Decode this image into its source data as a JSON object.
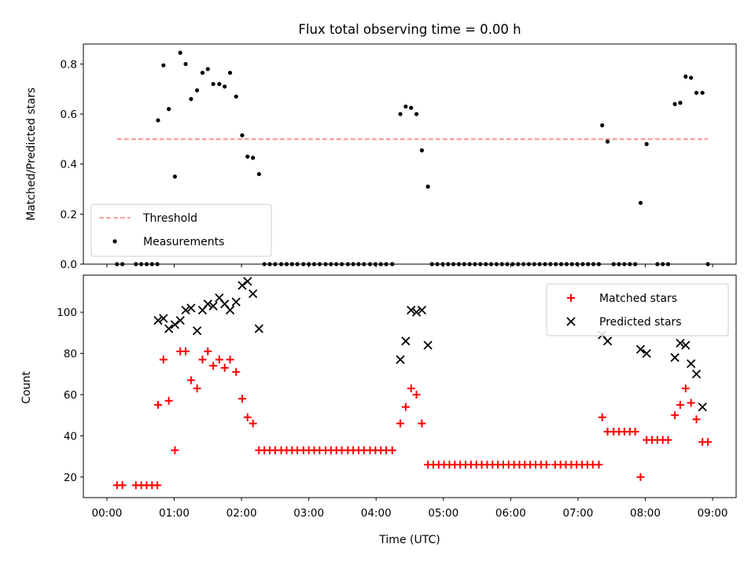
{
  "chart_data": [
    {
      "type": "scatter",
      "title": "Flux total observing time = 0.00 h",
      "xlabel": "",
      "ylabel": "Matched/Predicted stars",
      "xlim": [
        -0.35,
        9.35
      ],
      "ylim": [
        0,
        0.88
      ],
      "grid": false,
      "legend_position": "lower-left",
      "x_ticks": [
        "00:00",
        "01:00",
        "02:00",
        "03:00",
        "04:00",
        "05:00",
        "06:00",
        "07:00",
        "08:00",
        "09:00"
      ],
      "y_ticks": [
        "0.0",
        "0.2",
        "0.4",
        "0.6",
        "0.8"
      ],
      "threshold": {
        "name": "Threshold",
        "value": 0.5,
        "x_range": [
          0.15,
          8.93
        ],
        "color": "#ff7f7f"
      },
      "series": [
        {
          "name": "Measurements",
          "color": "#000000",
          "points": [
            [
              0.15,
              0.0
            ],
            [
              0.23,
              0.0
            ],
            [
              0.43,
              0.0
            ],
            [
              0.51,
              0.0
            ],
            [
              0.59,
              0.0
            ],
            [
              0.67,
              0.0
            ],
            [
              0.75,
              0.0
            ],
            [
              0.76,
              0.575
            ],
            [
              0.84,
              0.795
            ],
            [
              0.92,
              0.62
            ],
            [
              1.01,
              0.35
            ],
            [
              1.09,
              0.845
            ],
            [
              1.17,
              0.8
            ],
            [
              1.25,
              0.66
            ],
            [
              1.34,
              0.695
            ],
            [
              1.42,
              0.765
            ],
            [
              1.5,
              0.78
            ],
            [
              1.58,
              0.72
            ],
            [
              1.67,
              0.72
            ],
            [
              1.75,
              0.71
            ],
            [
              1.83,
              0.765
            ],
            [
              1.92,
              0.67
            ],
            [
              2.01,
              0.515
            ],
            [
              2.09,
              0.43
            ],
            [
              2.17,
              0.425
            ],
            [
              2.26,
              0.36
            ],
            [
              2.34,
              0.0
            ],
            [
              2.42,
              0.0
            ],
            [
              2.5,
              0.0
            ],
            [
              2.59,
              0.0
            ],
            [
              2.67,
              0.0
            ],
            [
              2.75,
              0.0
            ],
            [
              2.83,
              0.0
            ],
            [
              2.92,
              0.0
            ],
            [
              3.0,
              0.0
            ],
            [
              3.08,
              0.0
            ],
            [
              3.16,
              0.0
            ],
            [
              3.25,
              0.0
            ],
            [
              3.33,
              0.0
            ],
            [
              3.41,
              0.0
            ],
            [
              3.49,
              0.0
            ],
            [
              3.58,
              0.0
            ],
            [
              3.66,
              0.0
            ],
            [
              3.74,
              0.0
            ],
            [
              3.82,
              0.0
            ],
            [
              3.91,
              0.0
            ],
            [
              3.99,
              0.0
            ],
            [
              4.07,
              0.0
            ],
            [
              4.15,
              0.0
            ],
            [
              4.24,
              0.0
            ],
            [
              4.36,
              0.6
            ],
            [
              4.44,
              0.63
            ],
            [
              4.52,
              0.625
            ],
            [
              4.6,
              0.6
            ],
            [
              4.68,
              0.455
            ],
            [
              4.77,
              0.31
            ],
            [
              4.83,
              0.0
            ],
            [
              4.91,
              0.0
            ],
            [
              4.99,
              0.0
            ],
            [
              5.07,
              0.0
            ],
            [
              5.15,
              0.0
            ],
            [
              5.23,
              0.0
            ],
            [
              5.31,
              0.0
            ],
            [
              5.39,
              0.0
            ],
            [
              5.47,
              0.0
            ],
            [
              5.55,
              0.0
            ],
            [
              5.63,
              0.0
            ],
            [
              5.71,
              0.0
            ],
            [
              5.79,
              0.0
            ],
            [
              5.87,
              0.0
            ],
            [
              5.95,
              0.0
            ],
            [
              6.03,
              0.0
            ],
            [
              6.11,
              0.0
            ],
            [
              6.19,
              0.0
            ],
            [
              6.27,
              0.0
            ],
            [
              6.35,
              0.0
            ],
            [
              6.43,
              0.0
            ],
            [
              6.51,
              0.0
            ],
            [
              6.59,
              0.0
            ],
            [
              6.67,
              0.0
            ],
            [
              6.75,
              0.0
            ],
            [
              6.83,
              0.0
            ],
            [
              6.91,
              0.0
            ],
            [
              6.99,
              0.0
            ],
            [
              7.07,
              0.0
            ],
            [
              7.15,
              0.0
            ],
            [
              7.23,
              0.0
            ],
            [
              7.31,
              0.0
            ],
            [
              7.36,
              0.555
            ],
            [
              7.44,
              0.49
            ],
            [
              7.53,
              0.0
            ],
            [
              7.61,
              0.0
            ],
            [
              7.69,
              0.0
            ],
            [
              7.77,
              0.0
            ],
            [
              7.85,
              0.0
            ],
            [
              7.93,
              0.245
            ],
            [
              8.02,
              0.48
            ],
            [
              8.18,
              0.0
            ],
            [
              8.26,
              0.0
            ],
            [
              8.34,
              0.0
            ],
            [
              8.44,
              0.64
            ],
            [
              8.52,
              0.645
            ],
            [
              8.6,
              0.75
            ],
            [
              8.68,
              0.745
            ],
            [
              8.76,
              0.685
            ],
            [
              8.85,
              0.685
            ],
            [
              8.93,
              0.0
            ]
          ]
        }
      ]
    },
    {
      "type": "scatter",
      "title": "",
      "xlabel": "Time (UTC)",
      "ylabel": "Count",
      "xlim": [
        -0.35,
        9.35
      ],
      "ylim": [
        10,
        118
      ],
      "grid": false,
      "legend_position": "upper-right",
      "x_ticks": [
        "00:00",
        "01:00",
        "02:00",
        "03:00",
        "04:00",
        "05:00",
        "06:00",
        "07:00",
        "08:00",
        "09:00"
      ],
      "y_ticks": [
        "20",
        "40",
        "60",
        "80",
        "100"
      ],
      "series": [
        {
          "name": "Matched stars",
          "marker": "plus",
          "color": "#ff0000",
          "points": [
            [
              0.15,
              16
            ],
            [
              0.23,
              16
            ],
            [
              0.43,
              16
            ],
            [
              0.51,
              16
            ],
            [
              0.59,
              16
            ],
            [
              0.67,
              16
            ],
            [
              0.75,
              16
            ],
            [
              0.76,
              55
            ],
            [
              0.84,
              77
            ],
            [
              0.92,
              57
            ],
            [
              1.01,
              33
            ],
            [
              1.09,
              81
            ],
            [
              1.17,
              81
            ],
            [
              1.25,
              67
            ],
            [
              1.34,
              63
            ],
            [
              1.42,
              77
            ],
            [
              1.5,
              81
            ],
            [
              1.58,
              74
            ],
            [
              1.67,
              77
            ],
            [
              1.75,
              73
            ],
            [
              1.83,
              77
            ],
            [
              1.92,
              71
            ],
            [
              2.01,
              58
            ],
            [
              2.09,
              49
            ],
            [
              2.17,
              46
            ],
            [
              2.26,
              33
            ],
            [
              2.34,
              33
            ],
            [
              2.42,
              33
            ],
            [
              2.5,
              33
            ],
            [
              2.59,
              33
            ],
            [
              2.67,
              33
            ],
            [
              2.75,
              33
            ],
            [
              2.83,
              33
            ],
            [
              2.92,
              33
            ],
            [
              3.0,
              33
            ],
            [
              3.08,
              33
            ],
            [
              3.16,
              33
            ],
            [
              3.25,
              33
            ],
            [
              3.33,
              33
            ],
            [
              3.41,
              33
            ],
            [
              3.49,
              33
            ],
            [
              3.58,
              33
            ],
            [
              3.66,
              33
            ],
            [
              3.74,
              33
            ],
            [
              3.82,
              33
            ],
            [
              3.91,
              33
            ],
            [
              3.99,
              33
            ],
            [
              4.07,
              33
            ],
            [
              4.15,
              33
            ],
            [
              4.24,
              33
            ],
            [
              4.36,
              46
            ],
            [
              4.44,
              54
            ],
            [
              4.52,
              63
            ],
            [
              4.6,
              60
            ],
            [
              4.68,
              46
            ],
            [
              4.77,
              26
            ],
            [
              4.85,
              26
            ],
            [
              4.93,
              26
            ],
            [
              5.01,
              26
            ],
            [
              5.09,
              26
            ],
            [
              5.17,
              26
            ],
            [
              5.25,
              26
            ],
            [
              5.33,
              26
            ],
            [
              5.41,
              26
            ],
            [
              5.49,
              26
            ],
            [
              5.57,
              26
            ],
            [
              5.65,
              26
            ],
            [
              5.73,
              26
            ],
            [
              5.81,
              26
            ],
            [
              5.89,
              26
            ],
            [
              5.97,
              26
            ],
            [
              6.05,
              26
            ],
            [
              6.13,
              26
            ],
            [
              6.21,
              26
            ],
            [
              6.29,
              26
            ],
            [
              6.37,
              26
            ],
            [
              6.45,
              26
            ],
            [
              6.53,
              26
            ],
            [
              6.66,
              26
            ],
            [
              6.74,
              26
            ],
            [
              6.82,
              26
            ],
            [
              6.9,
              26
            ],
            [
              6.98,
              26
            ],
            [
              7.06,
              26
            ],
            [
              7.14,
              26
            ],
            [
              7.22,
              26
            ],
            [
              7.31,
              26
            ],
            [
              7.36,
              49
            ],
            [
              7.44,
              42
            ],
            [
              7.53,
              42
            ],
            [
              7.61,
              42
            ],
            [
              7.69,
              42
            ],
            [
              7.77,
              42
            ],
            [
              7.85,
              42
            ],
            [
              7.93,
              20
            ],
            [
              8.02,
              38
            ],
            [
              8.1,
              38
            ],
            [
              8.18,
              38
            ],
            [
              8.26,
              38
            ],
            [
              8.34,
              38
            ],
            [
              8.44,
              50
            ],
            [
              8.52,
              55
            ],
            [
              8.6,
              63
            ],
            [
              8.68,
              56
            ],
            [
              8.76,
              48
            ],
            [
              8.85,
              37
            ],
            [
              8.93,
              37
            ]
          ]
        },
        {
          "name": "Predicted stars",
          "marker": "x",
          "color": "#000000",
          "points": [
            [
              0.76,
              96
            ],
            [
              0.84,
              97
            ],
            [
              0.92,
              92
            ],
            [
              1.01,
              94
            ],
            [
              1.09,
              96
            ],
            [
              1.17,
              101
            ],
            [
              1.25,
              102
            ],
            [
              1.34,
              91
            ],
            [
              1.42,
              101
            ],
            [
              1.5,
              104
            ],
            [
              1.58,
              103
            ],
            [
              1.67,
              107
            ],
            [
              1.75,
              104
            ],
            [
              1.83,
              101
            ],
            [
              1.92,
              105
            ],
            [
              2.01,
              113
            ],
            [
              2.09,
              115
            ],
            [
              2.17,
              109
            ],
            [
              2.26,
              92
            ],
            [
              4.36,
              77
            ],
            [
              4.44,
              86
            ],
            [
              4.52,
              101
            ],
            [
              4.6,
              100
            ],
            [
              4.68,
              101
            ],
            [
              4.77,
              84
            ],
            [
              7.36,
              89
            ],
            [
              7.44,
              86
            ],
            [
              7.93,
              82
            ],
            [
              8.02,
              80
            ],
            [
              8.44,
              78
            ],
            [
              8.52,
              85
            ],
            [
              8.6,
              84
            ],
            [
              8.68,
              75
            ],
            [
              8.76,
              70
            ],
            [
              8.85,
              54
            ]
          ]
        }
      ]
    }
  ]
}
